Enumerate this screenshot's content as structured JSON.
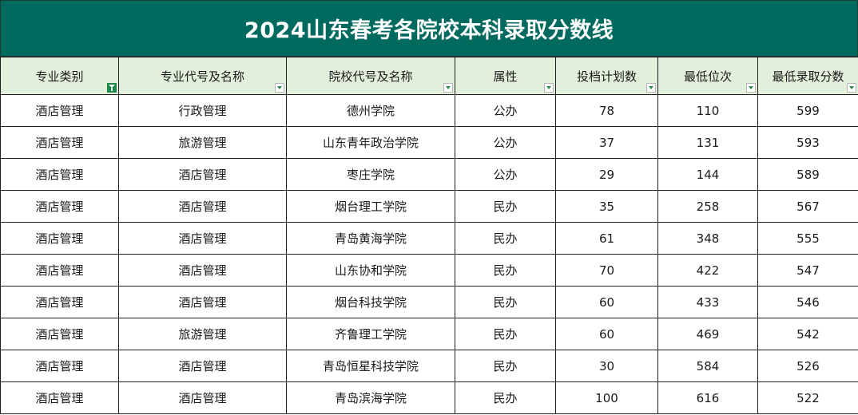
{
  "title": "2024山东春考各院校本科录取分数线",
  "colors": {
    "title_bg": "#006a5e",
    "header_bg": "#e2efda",
    "filter_active": "#1d8a4b"
  },
  "columns": [
    {
      "label": "专业类别",
      "filter_active": true
    },
    {
      "label": "专业代号及名称",
      "filter_active": false
    },
    {
      "label": "院校代号及名称",
      "filter_active": false
    },
    {
      "label": "属性",
      "filter_active": false
    },
    {
      "label": "投档计划数",
      "filter_active": false
    },
    {
      "label": "最低位次",
      "filter_active": false
    },
    {
      "label": "最低录取分数",
      "filter_active": false
    }
  ],
  "rows": [
    [
      "酒店管理",
      "行政管理",
      "德州学院",
      "公办",
      "78",
      "110",
      "599"
    ],
    [
      "酒店管理",
      "旅游管理",
      "山东青年政治学院",
      "公办",
      "37",
      "131",
      "593"
    ],
    [
      "酒店管理",
      "酒店管理",
      "枣庄学院",
      "公办",
      "29",
      "144",
      "589"
    ],
    [
      "酒店管理",
      "酒店管理",
      "烟台理工学院",
      "民办",
      "35",
      "258",
      "567"
    ],
    [
      "酒店管理",
      "酒店管理",
      "青岛黄海学院",
      "民办",
      "61",
      "348",
      "555"
    ],
    [
      "酒店管理",
      "酒店管理",
      "山东协和学院",
      "民办",
      "70",
      "422",
      "547"
    ],
    [
      "酒店管理",
      "酒店管理",
      "烟台科技学院",
      "民办",
      "60",
      "433",
      "546"
    ],
    [
      "酒店管理",
      "旅游管理",
      "齐鲁理工学院",
      "民办",
      "60",
      "469",
      "542"
    ],
    [
      "酒店管理",
      "酒店管理",
      "青岛恒星科技学院",
      "民办",
      "30",
      "584",
      "526"
    ],
    [
      "酒店管理",
      "酒店管理",
      "青岛滨海学院",
      "民办",
      "100",
      "616",
      "522"
    ]
  ]
}
